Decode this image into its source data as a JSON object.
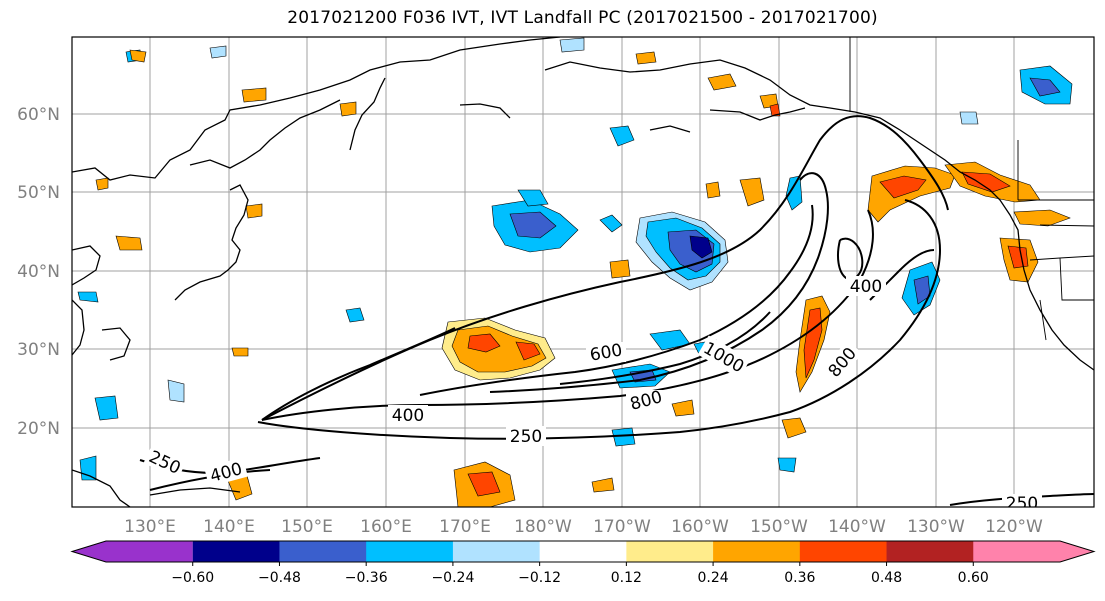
{
  "title": "2017021200 F036 IVT, IVT Landfall PC (2017021500 - 2017021700)",
  "lat_labels": [
    "60°N",
    "50°N",
    "40°N",
    "30°N",
    "20°N"
  ],
  "lon_labels": [
    "130°E",
    "140°E",
    "150°E",
    "160°E",
    "170°E",
    "180°W",
    "170°W",
    "160°W",
    "150°W",
    "140°W",
    "130°W",
    "120°W"
  ],
  "colorbar": {
    "ticks": [
      "−0.60",
      "−0.48",
      "−0.36",
      "−0.24",
      "−0.12",
      "0.12",
      "0.24",
      "0.36",
      "0.48",
      "0.60"
    ],
    "colors": [
      "#9932cc",
      "#00008b",
      "#3a5fcd",
      "#00bfff",
      "#b0e2ff",
      "#ffffff",
      "#ffec8b",
      "#ffa500",
      "#ff4500",
      "#b22222",
      "#ff82ab"
    ]
  },
  "contour_labels": [
    {
      "text": "600"
    },
    {
      "text": "1000"
    },
    {
      "text": "800"
    },
    {
      "text": "400"
    },
    {
      "text": "250"
    },
    {
      "text": "800"
    },
    {
      "text": "400"
    },
    {
      "text": "250"
    },
    {
      "text": "400"
    },
    {
      "text": "250"
    }
  ]
}
